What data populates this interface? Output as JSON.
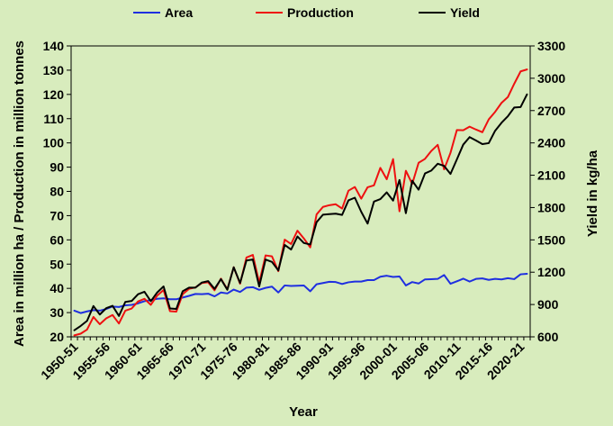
{
  "chart_data": {
    "type": "line",
    "title": "",
    "xlabel": "Year",
    "ylabel_left": "Area in million ha / Production in million tonnes",
    "ylabel_right": "Yield in kg/ha",
    "y_left_range": [
      20,
      140
    ],
    "y_left_ticks": [
      20,
      30,
      40,
      50,
      60,
      70,
      80,
      90,
      100,
      110,
      120,
      130,
      140
    ],
    "y_right_range": [
      600,
      3300
    ],
    "y_right_ticks": [
      600,
      900,
      1200,
      1500,
      1800,
      2100,
      2400,
      2700,
      3000,
      3300
    ],
    "x_tick_labels": [
      "1950-51",
      "1955-56",
      "1960-61",
      "1965-66",
      "1970-71",
      "1975-76",
      "1980-81",
      "1985-86",
      "1990-91",
      "1995-96",
      "2000-01",
      "2005-06",
      "2010-11",
      "2015-16",
      "2020-21"
    ],
    "x_tick_every": 5,
    "legend_position": "top",
    "grid": false,
    "colors": {
      "Area": "#1f2fe0",
      "Production": "#ee1111",
      "Yield": "#000000"
    },
    "series": [
      {
        "name": "Area",
        "axis": "left",
        "values": [
          30.8,
          29.8,
          30.5,
          31.0,
          30.8,
          31.5,
          32.5,
          32.3,
          33.0,
          33.2,
          33.8,
          34.7,
          35.2,
          35.7,
          35.9,
          35.5,
          35.5,
          36.2,
          36.9,
          37.7,
          37.6,
          37.8,
          36.7,
          38.3,
          37.9,
          39.5,
          38.5,
          40.3,
          40.5,
          39.4,
          40.2,
          40.7,
          38.3,
          41.2,
          41.0,
          41.1,
          41.2,
          38.8,
          41.7,
          42.2,
          42.7,
          42.6,
          41.8,
          42.5,
          42.8,
          42.8,
          43.4,
          43.4,
          44.8,
          45.2,
          44.7,
          44.9,
          41.2,
          42.6,
          42.0,
          43.7,
          43.8,
          43.9,
          45.5,
          41.9,
          42.9,
          44.0,
          42.8,
          43.9,
          44.1,
          43.5,
          43.9,
          43.7,
          44.2,
          43.8,
          45.8,
          46.0
        ]
      },
      {
        "name": "Production",
        "axis": "left",
        "values": [
          20.6,
          21.3,
          23.0,
          28.2,
          25.2,
          27.6,
          29.0,
          25.5,
          30.8,
          31.7,
          34.6,
          35.7,
          33.2,
          37.0,
          39.3,
          30.6,
          30.4,
          37.6,
          39.8,
          40.4,
          42.2,
          42.5,
          39.2,
          44.0,
          39.6,
          48.7,
          41.9,
          52.7,
          53.8,
          42.3,
          53.6,
          53.2,
          47.1,
          60.1,
          58.3,
          63.8,
          60.6,
          56.9,
          70.5,
          73.6,
          74.3,
          74.7,
          72.9,
          80.3,
          81.8,
          77.0,
          81.7,
          82.5,
          89.7,
          85.0,
          93.3,
          71.8,
          88.5,
          83.1,
          91.8,
          93.4,
          96.7,
          99.2,
          89.1,
          95.9,
          105.3,
          105.2,
          106.7,
          105.5,
          104.4,
          109.7,
          112.8,
          116.5,
          118.9,
          124.4,
          129.5,
          130.3
        ]
      },
      {
        "name": "Yield",
        "axis": "left",
        "values": [
          22.7,
          24.5,
          26.6,
          32.7,
          29.2,
          31.8,
          32.8,
          28.6,
          34.4,
          34.8,
          37.6,
          38.6,
          34.7,
          38.3,
          40.8,
          31.7,
          31.5,
          38.8,
          40.3,
          40.3,
          42.4,
          43.0,
          39.8,
          43.8,
          39.4,
          48.7,
          42.2,
          51.5,
          51.9,
          40.8,
          51.9,
          50.9,
          47.4,
          57.9,
          56.0,
          61.4,
          58.7,
          58.1,
          67.3,
          70.4,
          70.6,
          70.8,
          70.3,
          76.3,
          77.4,
          71.6,
          66.7,
          75.8,
          76.8,
          79.6,
          76.2,
          84.7,
          71.0,
          84.4,
          80.7,
          87.4,
          88.6,
          91.4,
          90.5,
          87.2,
          93.2,
          99.3,
          102.4,
          101.0,
          99.5,
          99.9,
          105.0,
          108.3,
          111.0,
          114.6,
          114.8,
          120.0
        ]
      }
    ]
  }
}
